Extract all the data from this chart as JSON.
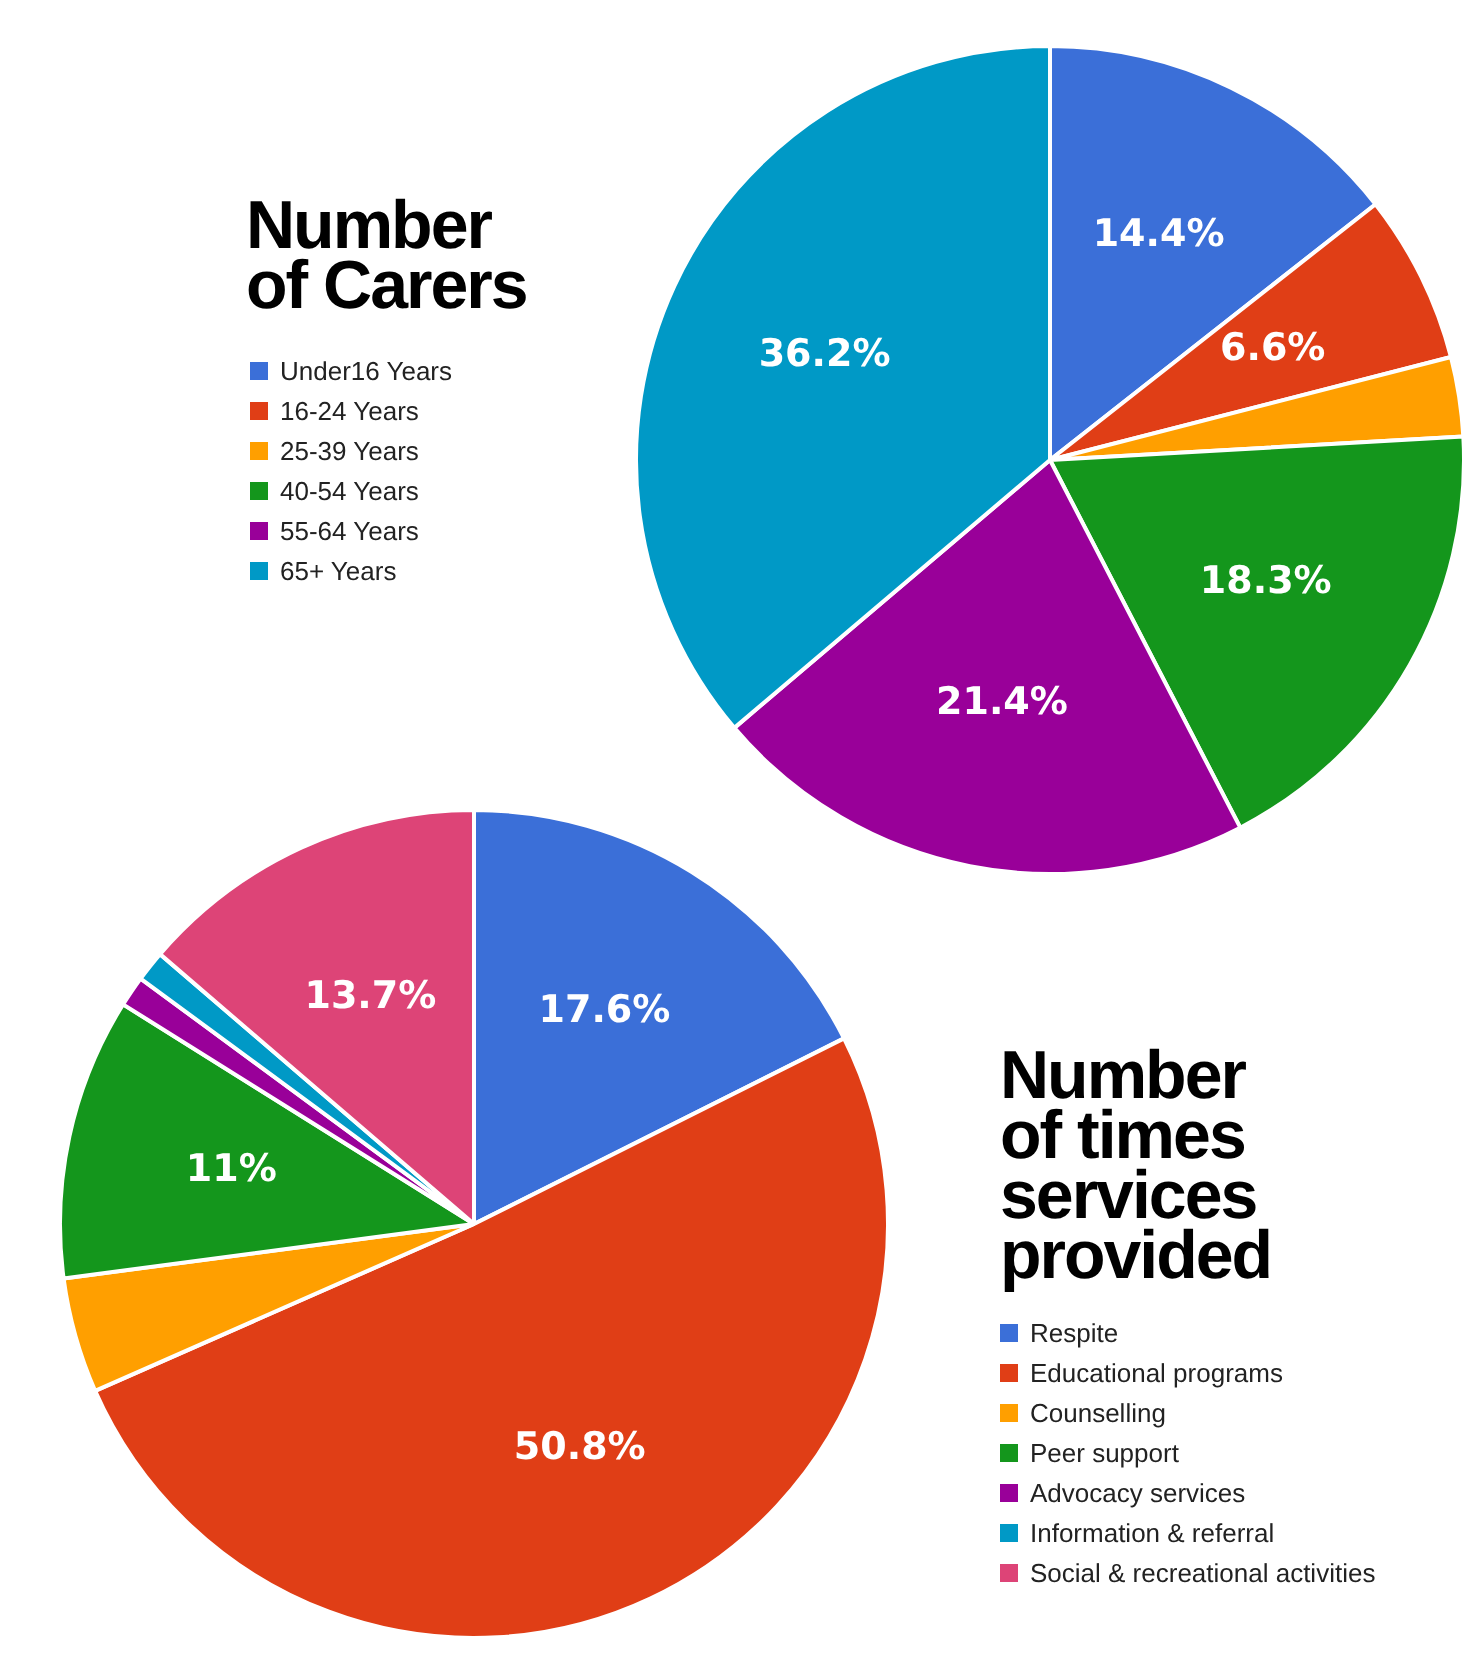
{
  "chart_data": [
    {
      "type": "pie",
      "title": "Number of Carers",
      "legend": "left",
      "categories": [
        "Under16 Years",
        "16-24 Years",
        "25-39 Years",
        "40-54 Years",
        "55-64 Years",
        "65+ Years"
      ],
      "values": [
        14.4,
        6.6,
        3.1,
        18.3,
        21.4,
        36.2
      ],
      "colors": [
        "#3b6fd8",
        "#e03e16",
        "#ff9f00",
        "#14961c",
        "#990099",
        "#0099c6"
      ],
      "value_labels": [
        "14.4%",
        "6.6%",
        null,
        "18.3%",
        "21.4%",
        "36.2%"
      ]
    },
    {
      "type": "pie",
      "title": "Number of times services provided",
      "legend": "right",
      "categories": [
        "Respite",
        "Educational programs",
        "Counselling",
        "Peer support",
        "Advocacy services",
        "Information & referral",
        "Social & recreational activities"
      ],
      "values": [
        17.6,
        50.8,
        4.5,
        11,
        1.2,
        1.2,
        13.7
      ],
      "colors": [
        "#3b6fd8",
        "#e03e16",
        "#ff9f00",
        "#14961c",
        "#990099",
        "#0099c6",
        "#dd4477"
      ],
      "value_labels": [
        "17.6%",
        "50.8%",
        null,
        "11%",
        null,
        null,
        "13.7%"
      ]
    }
  ]
}
